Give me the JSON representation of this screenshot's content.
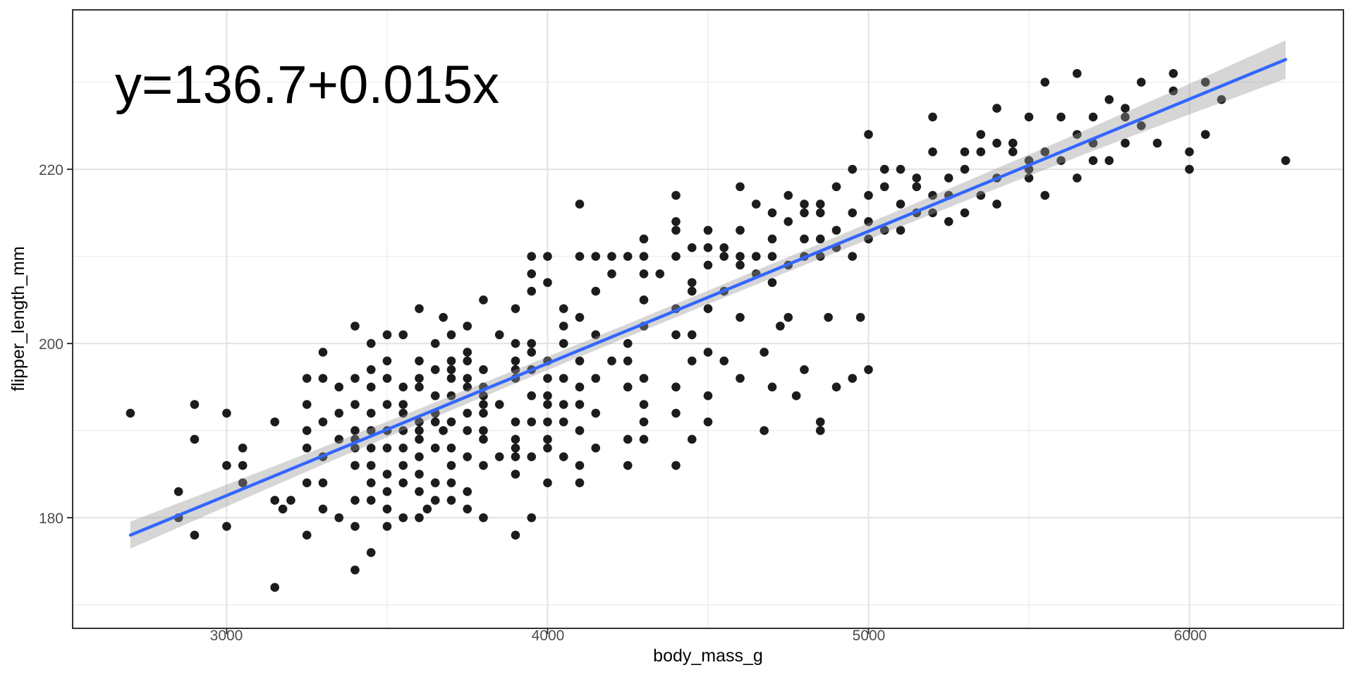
{
  "chart_data": {
    "type": "scatter",
    "annotation": {
      "text": "y=136.7+0.015x",
      "x": 3200,
      "y": 232
    },
    "xlabel": "body_mass_g",
    "ylabel": "flipper_length_mm",
    "x_ticks": [
      3000,
      4000,
      5000,
      6000
    ],
    "x_tick_labels": [
      "3000",
      "4000",
      "5000",
      "6000"
    ],
    "y_ticks": [
      220,
      200,
      180
    ],
    "y_tick_labels": [
      "220",
      "200",
      "180"
    ],
    "x_minor_ticks": [
      3500,
      4500,
      5500
    ],
    "y_minor_ticks": [
      170,
      190,
      210,
      230
    ],
    "x_domain": [
      2520,
      6480
    ],
    "y_domain": [
      167.3,
      238.3
    ],
    "grid": true,
    "legend": false,
    "regression": {
      "equation": "y=136.7+0.015x",
      "intercept": 136.7,
      "slope": 0.015,
      "x_start": 2700,
      "x_end": 6300,
      "se_band": true
    },
    "line_draw": {
      "x1": 2700,
      "y1": 178.0,
      "x2": 6300,
      "y2": 232.6
    },
    "ci": {
      "x": [
        2700,
        3000,
        3300,
        3600,
        3900,
        4200,
        4500,
        4800,
        5100,
        5400,
        5700,
        6000,
        6300
      ],
      "halfwidth": [
        1.55,
        1.25,
        1.0,
        0.85,
        0.78,
        0.75,
        0.78,
        0.85,
        0.98,
        1.15,
        1.38,
        1.75,
        2.2
      ]
    },
    "style": {
      "point_color": "#1c1c1c",
      "point_radius": 6.3,
      "line_color": "#3366FF",
      "line_width": 4.4,
      "ribbon_color": "rgba(153,153,153,0.40)",
      "grid_major_color": "#e4e4e4",
      "grid_minor_color": "#ededed",
      "panel_border_color": "#333333",
      "tick_color": "#333333",
      "tick_label_color": "#4d4d4d",
      "background": "#ffffff"
    },
    "points": [
      [
        2700,
        192
      ],
      [
        2850,
        183
      ],
      [
        2850,
        180
      ],
      [
        2900,
        193
      ],
      [
        2900,
        178
      ],
      [
        2900,
        189
      ],
      [
        3000,
        186
      ],
      [
        3000,
        192
      ],
      [
        3000,
        179
      ],
      [
        3050,
        188
      ],
      [
        3050,
        184
      ],
      [
        3050,
        186
      ],
      [
        3150,
        191
      ],
      [
        3150,
        172
      ],
      [
        3150,
        182
      ],
      [
        3175,
        181
      ],
      [
        3200,
        182
      ],
      [
        3250,
        190
      ],
      [
        3250,
        193
      ],
      [
        3250,
        184
      ],
      [
        3250,
        178
      ],
      [
        3250,
        196
      ],
      [
        3250,
        188
      ],
      [
        3300,
        181
      ],
      [
        3300,
        196
      ],
      [
        3300,
        187
      ],
      [
        3300,
        184
      ],
      [
        3300,
        199
      ],
      [
        3300,
        191
      ],
      [
        3350,
        192
      ],
      [
        3350,
        180
      ],
      [
        3350,
        189
      ],
      [
        3350,
        195
      ],
      [
        3400,
        182
      ],
      [
        3400,
        190
      ],
      [
        3400,
        186
      ],
      [
        3400,
        193
      ],
      [
        3400,
        179
      ],
      [
        3400,
        188
      ],
      [
        3400,
        174
      ],
      [
        3400,
        196
      ],
      [
        3400,
        202
      ],
      [
        3400,
        189
      ],
      [
        3450,
        192
      ],
      [
        3450,
        184
      ],
      [
        3450,
        195
      ],
      [
        3450,
        186
      ],
      [
        3450,
        182
      ],
      [
        3450,
        197
      ],
      [
        3450,
        176
      ],
      [
        3450,
        200
      ],
      [
        3450,
        190
      ],
      [
        3450,
        188
      ],
      [
        3500,
        188
      ],
      [
        3500,
        179
      ],
      [
        3500,
        185
      ],
      [
        3500,
        193
      ],
      [
        3500,
        181
      ],
      [
        3500,
        190
      ],
      [
        3500,
        196
      ],
      [
        3500,
        198
      ],
      [
        3500,
        183
      ],
      [
        3500,
        201
      ],
      [
        3550,
        184
      ],
      [
        3550,
        192
      ],
      [
        3550,
        188
      ],
      [
        3550,
        195
      ],
      [
        3550,
        180
      ],
      [
        3550,
        190
      ],
      [
        3550,
        193
      ],
      [
        3550,
        201
      ],
      [
        3550,
        186
      ],
      [
        3600,
        185
      ],
      [
        3600,
        196
      ],
      [
        3600,
        187
      ],
      [
        3600,
        183
      ],
      [
        3600,
        198
      ],
      [
        3600,
        189
      ],
      [
        3600,
        180
      ],
      [
        3600,
        191
      ],
      [
        3600,
        204
      ],
      [
        3600,
        195
      ],
      [
        3600,
        190
      ],
      [
        3625,
        181
      ],
      [
        3650,
        194
      ],
      [
        3650,
        182
      ],
      [
        3650,
        191
      ],
      [
        3650,
        197
      ],
      [
        3650,
        184
      ],
      [
        3650,
        192
      ],
      [
        3650,
        188
      ],
      [
        3650,
        200
      ],
      [
        3675,
        203
      ],
      [
        3675,
        190
      ],
      [
        3700,
        196
      ],
      [
        3700,
        182
      ],
      [
        3700,
        191
      ],
      [
        3700,
        194
      ],
      [
        3700,
        186
      ],
      [
        3700,
        197
      ],
      [
        3700,
        188
      ],
      [
        3700,
        184
      ],
      [
        3700,
        198
      ],
      [
        3700,
        201
      ],
      [
        3750,
        199
      ],
      [
        3750,
        190
      ],
      [
        3750,
        181
      ],
      [
        3750,
        187
      ],
      [
        3750,
        195
      ],
      [
        3750,
        183
      ],
      [
        3750,
        192
      ],
      [
        3750,
        198
      ],
      [
        3750,
        196
      ],
      [
        3750,
        202
      ],
      [
        3800,
        186
      ],
      [
        3800,
        194
      ],
      [
        3800,
        190
      ],
      [
        3800,
        197
      ],
      [
        3800,
        180
      ],
      [
        3800,
        192
      ],
      [
        3800,
        195
      ],
      [
        3800,
        193
      ],
      [
        3800,
        189
      ],
      [
        3800,
        205
      ],
      [
        3850,
        187
      ],
      [
        3850,
        193
      ],
      [
        3850,
        201
      ],
      [
        3900,
        187
      ],
      [
        3900,
        198
      ],
      [
        3900,
        189
      ],
      [
        3900,
        185
      ],
      [
        3900,
        200
      ],
      [
        3900,
        191
      ],
      [
        3900,
        178
      ],
      [
        3900,
        188
      ],
      [
        3900,
        196
      ],
      [
        3900,
        197
      ],
      [
        3900,
        204
      ],
      [
        3950,
        197
      ],
      [
        3950,
        180
      ],
      [
        3950,
        194
      ],
      [
        3950,
        200
      ],
      [
        3950,
        187
      ],
      [
        3950,
        191
      ],
      [
        3950,
        199
      ],
      [
        3950,
        206
      ],
      [
        3950,
        208
      ],
      [
        3950,
        210
      ],
      [
        4000,
        191
      ],
      [
        4000,
        198
      ],
      [
        4000,
        184
      ],
      [
        4000,
        193
      ],
      [
        4000,
        196
      ],
      [
        4000,
        188
      ],
      [
        4000,
        189
      ],
      [
        4000,
        194
      ],
      [
        4000,
        207
      ],
      [
        4000,
        210
      ],
      [
        4050,
        200
      ],
      [
        4050,
        191
      ],
      [
        4050,
        187
      ],
      [
        4050,
        202
      ],
      [
        4050,
        193
      ],
      [
        4050,
        204
      ],
      [
        4050,
        196
      ],
      [
        4100,
        184
      ],
      [
        4100,
        190
      ],
      [
        4100,
        198
      ],
      [
        4100,
        186
      ],
      [
        4100,
        195
      ],
      [
        4100,
        193
      ],
      [
        4100,
        203
      ],
      [
        4100,
        210
      ],
      [
        4100,
        216
      ],
      [
        4150,
        201
      ],
      [
        4150,
        188
      ],
      [
        4150,
        196
      ],
      [
        4150,
        192
      ],
      [
        4150,
        206
      ],
      [
        4150,
        210
      ],
      [
        4200,
        198
      ],
      [
        4200,
        208
      ],
      [
        4200,
        210
      ],
      [
        4250,
        200
      ],
      [
        4250,
        186
      ],
      [
        4250,
        195
      ],
      [
        4250,
        198
      ],
      [
        4250,
        189
      ],
      [
        4250,
        210
      ],
      [
        4300,
        191
      ],
      [
        4300,
        202
      ],
      [
        4300,
        193
      ],
      [
        4300,
        189
      ],
      [
        4300,
        196
      ],
      [
        4300,
        205
      ],
      [
        4300,
        208
      ],
      [
        4300,
        210
      ],
      [
        4300,
        212
      ],
      [
        4350,
        208
      ],
      [
        4400,
        204
      ],
      [
        4400,
        195
      ],
      [
        4400,
        186
      ],
      [
        4400,
        192
      ],
      [
        4400,
        201
      ],
      [
        4400,
        210
      ],
      [
        4400,
        213
      ],
      [
        4400,
        214
      ],
      [
        4400,
        217
      ],
      [
        4450,
        201
      ],
      [
        4450,
        189
      ],
      [
        4450,
        198
      ],
      [
        4450,
        207
      ],
      [
        4450,
        206
      ],
      [
        4450,
        211
      ],
      [
        4500,
        204
      ],
      [
        4500,
        191
      ],
      [
        4500,
        199
      ],
      [
        4500,
        194
      ],
      [
        4500,
        209
      ],
      [
        4500,
        211
      ],
      [
        4500,
        213
      ],
      [
        4550,
        198
      ],
      [
        4550,
        206
      ],
      [
        4550,
        210
      ],
      [
        4550,
        211
      ],
      [
        4600,
        196
      ],
      [
        4600,
        203
      ],
      [
        4600,
        209
      ],
      [
        4600,
        210
      ],
      [
        4600,
        213
      ],
      [
        4600,
        218
      ],
      [
        4650,
        208
      ],
      [
        4650,
        210
      ],
      [
        4650,
        216
      ],
      [
        4675,
        190
      ],
      [
        4675,
        199
      ],
      [
        4700,
        195
      ],
      [
        4700,
        207
      ],
      [
        4700,
        210
      ],
      [
        4700,
        212
      ],
      [
        4700,
        215
      ],
      [
        4725,
        202
      ],
      [
        4750,
        203
      ],
      [
        4750,
        209
      ],
      [
        4750,
        214
      ],
      [
        4750,
        217
      ],
      [
        4775,
        194
      ],
      [
        4800,
        197
      ],
      [
        4800,
        210
      ],
      [
        4800,
        212
      ],
      [
        4800,
        215
      ],
      [
        4800,
        216
      ],
      [
        4850,
        190
      ],
      [
        4850,
        191
      ],
      [
        4850,
        210
      ],
      [
        4850,
        212
      ],
      [
        4850,
        215
      ],
      [
        4850,
        216
      ],
      [
        4875,
        203
      ],
      [
        4900,
        195
      ],
      [
        4900,
        211
      ],
      [
        4900,
        213
      ],
      [
        4900,
        218
      ],
      [
        4950,
        196
      ],
      [
        4950,
        210
      ],
      [
        4950,
        215
      ],
      [
        4950,
        220
      ],
      [
        4975,
        203
      ],
      [
        5000,
        197
      ],
      [
        5000,
        212
      ],
      [
        5000,
        214
      ],
      [
        5000,
        217
      ],
      [
        5000,
        224
      ],
      [
        5050,
        213
      ],
      [
        5050,
        218
      ],
      [
        5050,
        220
      ],
      [
        5100,
        213
      ],
      [
        5100,
        216
      ],
      [
        5100,
        220
      ],
      [
        5150,
        215
      ],
      [
        5150,
        218
      ],
      [
        5150,
        219
      ],
      [
        5200,
        215
      ],
      [
        5200,
        217
      ],
      [
        5200,
        222
      ],
      [
        5200,
        226
      ],
      [
        5250,
        214
      ],
      [
        5250,
        217
      ],
      [
        5250,
        219
      ],
      [
        5300,
        215
      ],
      [
        5300,
        220
      ],
      [
        5300,
        222
      ],
      [
        5350,
        217
      ],
      [
        5350,
        222
      ],
      [
        5350,
        224
      ],
      [
        5400,
        216
      ],
      [
        5400,
        219
      ],
      [
        5400,
        223
      ],
      [
        5400,
        227
      ],
      [
        5450,
        222
      ],
      [
        5450,
        223
      ],
      [
        5500,
        219
      ],
      [
        5500,
        220
      ],
      [
        5500,
        221
      ],
      [
        5500,
        226
      ],
      [
        5550,
        217
      ],
      [
        5550,
        222
      ],
      [
        5550,
        230
      ],
      [
        5600,
        221
      ],
      [
        5600,
        226
      ],
      [
        5650,
        219
      ],
      [
        5650,
        224
      ],
      [
        5650,
        231
      ],
      [
        5700,
        221
      ],
      [
        5700,
        223
      ],
      [
        5700,
        226
      ],
      [
        5750,
        221
      ],
      [
        5750,
        228
      ],
      [
        5800,
        223
      ],
      [
        5800,
        226
      ],
      [
        5800,
        227
      ],
      [
        5850,
        225
      ],
      [
        5850,
        230
      ],
      [
        5900,
        223
      ],
      [
        5950,
        229
      ],
      [
        5950,
        231
      ],
      [
        6000,
        220
      ],
      [
        6000,
        222
      ],
      [
        6050,
        224
      ],
      [
        6050,
        230
      ],
      [
        6100,
        228
      ],
      [
        6300,
        221
      ]
    ]
  }
}
